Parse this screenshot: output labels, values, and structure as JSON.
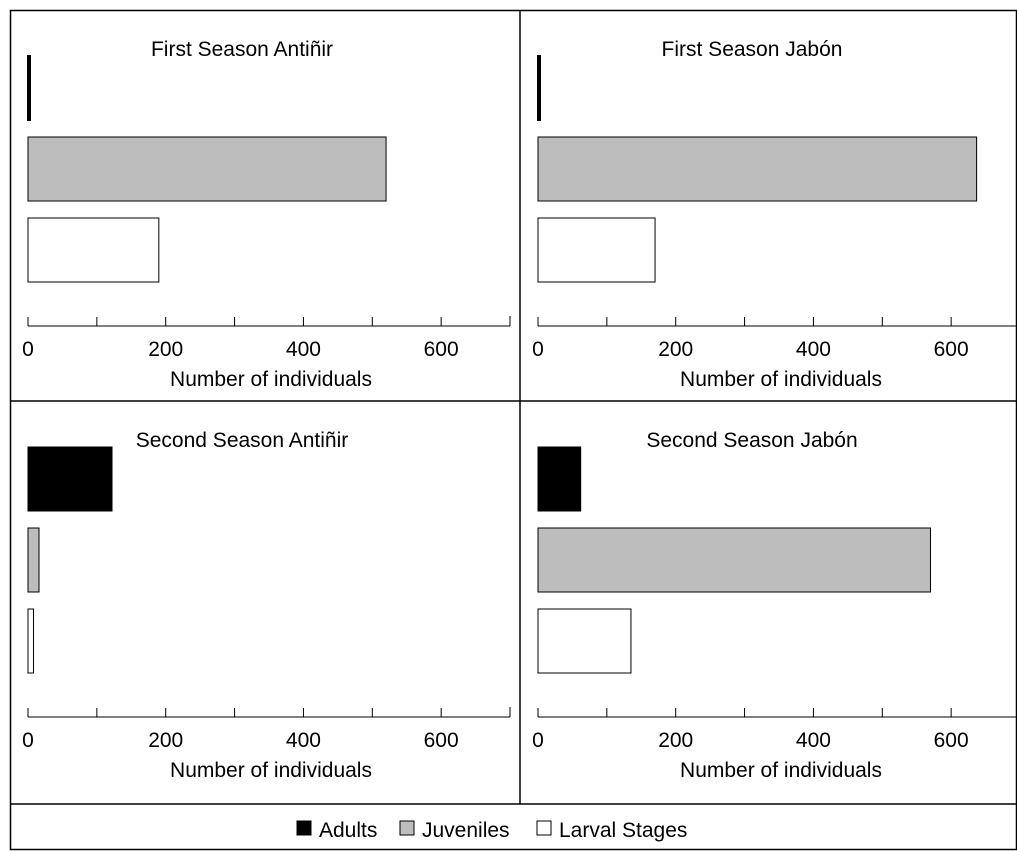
{
  "figure": {
    "xlabel": "Number of individuals",
    "xticks": [
      0,
      200,
      400,
      600
    ],
    "xlim": [
      0,
      700
    ]
  },
  "legend": {
    "items": [
      {
        "label": "Adults",
        "color": "#000000"
      },
      {
        "label": "Juveniles",
        "color": "#bdbdbd"
      },
      {
        "label": "Larval Stages",
        "color": "#ffffff"
      }
    ],
    "position": "bottom"
  },
  "chart_data": [
    {
      "type": "bar",
      "orientation": "horizontal",
      "title": "First Season Antiñir",
      "categories": [
        "Adults",
        "Juveniles",
        "Larval Stages"
      ],
      "values": [
        5,
        520,
        190
      ],
      "xlabel": "Number of individuals",
      "xlim": [
        0,
        700
      ]
    },
    {
      "type": "bar",
      "orientation": "horizontal",
      "title": "First Season Jabón",
      "categories": [
        "Adults",
        "Juveniles",
        "Larval Stages"
      ],
      "values": [
        5,
        637,
        170
      ],
      "xlabel": "Number of individuals",
      "xlim": [
        0,
        700
      ]
    },
    {
      "type": "bar",
      "orientation": "horizontal",
      "title": "Second Season Antiñir",
      "categories": [
        "Adults",
        "Juveniles",
        "Larval Stages"
      ],
      "values": [
        122,
        16,
        8
      ],
      "xlabel": "Number of individuals",
      "xlim": [
        0,
        700
      ]
    },
    {
      "type": "bar",
      "orientation": "horizontal",
      "title": "Second Season Jabón",
      "categories": [
        "Adults",
        "Juveniles",
        "Larval Stages"
      ],
      "values": [
        62,
        570,
        135
      ],
      "xlabel": "Number of individuals",
      "xlim": [
        0,
        700
      ]
    }
  ]
}
